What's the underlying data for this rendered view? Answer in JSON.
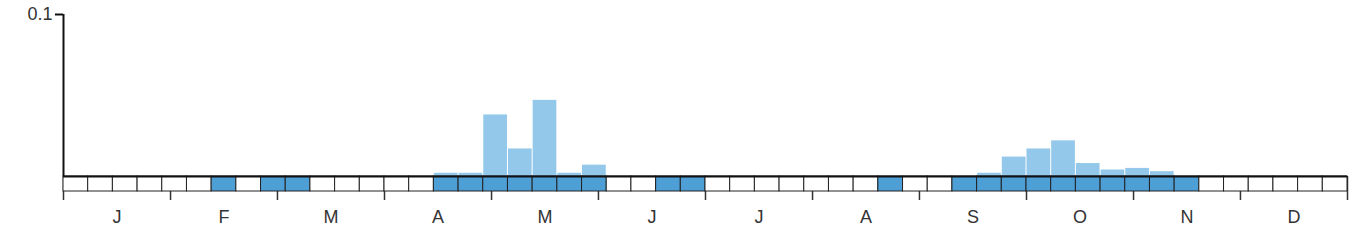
{
  "chart_data": {
    "type": "bar",
    "x": [
      1,
      2,
      3,
      4,
      5,
      6,
      7,
      8,
      9,
      10,
      11,
      12,
      13,
      14,
      15,
      16,
      17,
      18,
      19,
      20,
      21,
      22,
      23,
      24,
      25,
      26,
      27,
      28,
      29,
      30,
      31,
      32,
      33,
      34,
      35,
      36,
      37,
      38,
      39,
      40,
      41,
      42,
      43,
      44,
      45,
      46,
      47,
      48,
      49,
      50,
      51,
      52
    ],
    "values": [
      0,
      0,
      0,
      0,
      0,
      0,
      0,
      0,
      0,
      0,
      0,
      0,
      0,
      0,
      0,
      0.002,
      0.002,
      0.038,
      0.017,
      0.047,
      0.002,
      0.007,
      0,
      0,
      0,
      0,
      0,
      0,
      0,
      0,
      0,
      0,
      0,
      0,
      0,
      0,
      0,
      0.002,
      0.012,
      0.017,
      0.022,
      0.008,
      0.004,
      0.005,
      0.003,
      0,
      0,
      0,
      0,
      0,
      0,
      0
    ],
    "color": "#93c8ea",
    "presence": {
      "color": "#4d9fd6",
      "values": [
        false,
        false,
        false,
        false,
        false,
        false,
        true,
        false,
        true,
        true,
        false,
        false,
        false,
        false,
        false,
        true,
        true,
        true,
        true,
        true,
        true,
        true,
        false,
        false,
        true,
        true,
        false,
        false,
        false,
        false,
        false,
        false,
        false,
        true,
        false,
        false,
        true,
        true,
        true,
        true,
        true,
        true,
        true,
        true,
        true,
        true,
        false,
        false,
        false,
        false,
        false,
        false
      ]
    },
    "xlim": [
      0.5,
      52.5
    ],
    "xticks": [
      {
        "value": 2.67,
        "label": "J"
      },
      {
        "value": 7.0,
        "label": "F"
      },
      {
        "value": 11.33,
        "label": "M"
      },
      {
        "value": 15.67,
        "label": "A"
      },
      {
        "value": 20.0,
        "label": "M"
      },
      {
        "value": 24.33,
        "label": "J"
      },
      {
        "value": 28.67,
        "label": "J"
      },
      {
        "value": 33.0,
        "label": "A"
      },
      {
        "value": 37.33,
        "label": "S"
      },
      {
        "value": 41.67,
        "label": "O"
      },
      {
        "value": 46.0,
        "label": "N"
      },
      {
        "value": 50.33,
        "label": "D"
      }
    ],
    "ylim": [
      0,
      0.1
    ],
    "yticks": [
      0.1
    ]
  }
}
